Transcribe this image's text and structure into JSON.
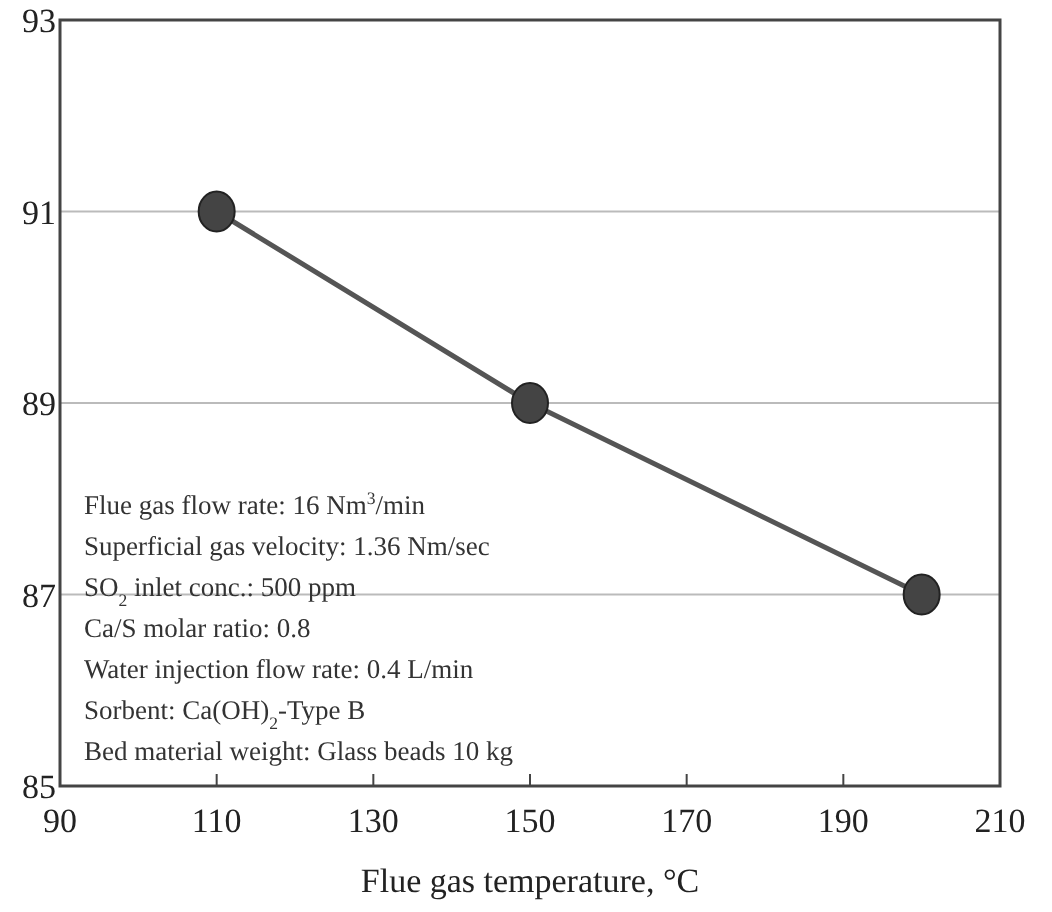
{
  "chart_data": {
    "type": "line",
    "xlabel": "Flue gas temperature, °C",
    "x": [
      110,
      150,
      200
    ],
    "series": [
      {
        "color": "#555555",
        "values": [
          91,
          89,
          87
        ]
      }
    ],
    "xlim": [
      90,
      210
    ],
    "xticks": [
      90,
      110,
      130,
      150,
      170,
      190,
      210
    ],
    "ylim": [
      85,
      93
    ],
    "yticks": [
      85,
      87,
      89,
      91,
      93
    ],
    "grid": "y",
    "marker": "circle",
    "line_style": "solid",
    "annotations": [
      "Flue gas flow rate: 16 Nm$^{3}$/min",
      "Superficial gas velocity: 1.36 Nm/sec",
      "SO$_{2}$ inlet conc.: 500 ppm",
      "Ca/S molar ratio: 0.8",
      "Water injection flow rate: 0.4 L/min",
      "Sorbent: Ca(OH)$_{2}$-Type B",
      "Bed material weight: Glass beads 10 kg"
    ]
  }
}
